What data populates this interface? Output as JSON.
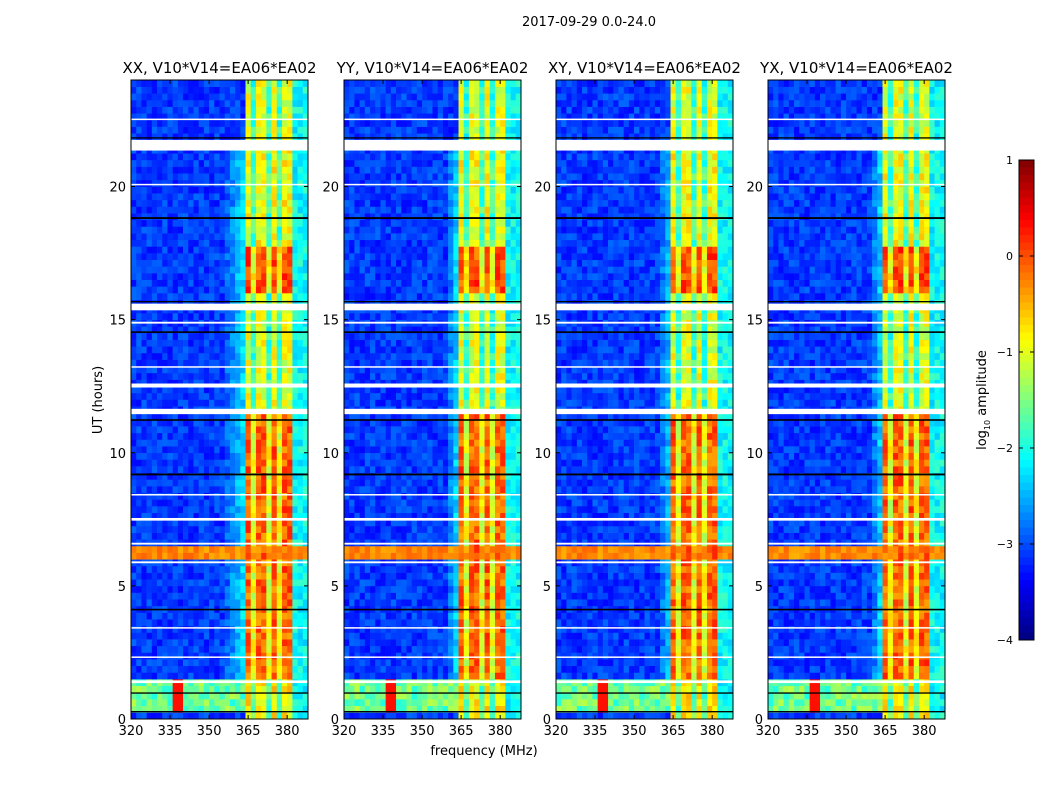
{
  "chart_data": {
    "type": "heatmap",
    "suptitle": "2017-09-29 0.0-24.0",
    "xlabel": "frequency (MHz)",
    "ylabel": "UT (hours)",
    "xlim": [
      320,
      388
    ],
    "ylim": [
      0,
      24
    ],
    "xticks": [
      320,
      335,
      350,
      365,
      380
    ],
    "yticks": [
      0,
      5,
      10,
      15,
      20
    ],
    "panels": [
      {
        "title": "XX, V10*V14=EA06*EA02",
        "band_start": 363,
        "rise_start": 354
      },
      {
        "title": "YY, V10*V14=EA06*EA02",
        "band_start": 363,
        "rise_start": 358
      },
      {
        "title": "XY, V10*V14=EA06*EA02",
        "band_start": 364,
        "rise_start": 358
      },
      {
        "title": "YX, V10*V14=EA06*EA02",
        "band_start": 363,
        "rise_start": 358
      }
    ],
    "colorbar": {
      "label": "log10 amplitude",
      "label_main": "log",
      "label_sub": "10",
      "label_rest": " amplitude",
      "range": [
        -4,
        1
      ],
      "ticks": [
        1,
        0,
        -1,
        -2,
        -3,
        -4
      ],
      "tick_labels": [
        "1",
        "0",
        "−1",
        "−2",
        "−3",
        "−4"
      ],
      "colormap": "jet"
    },
    "model": {
      "background_level": -3.1,
      "rfi_band_mhz": [
        363,
        381
      ],
      "rfi_band_gaps_mhz": [
        367.5,
        372.5,
        376.5
      ],
      "rfi_level_by_time": [
        {
          "from": 0,
          "to": 1.3,
          "level": -0.8
        },
        {
          "from": 1.3,
          "to": 11.5,
          "level": -0.1
        },
        {
          "from": 11.5,
          "to": 16.0,
          "level": -1.0
        },
        {
          "from": 16.0,
          "to": 17.6,
          "level": 0.0
        },
        {
          "from": 17.6,
          "to": 21.4,
          "level": -0.9
        },
        {
          "from": 21.7,
          "to": 24,
          "level": -1.0
        }
      ],
      "low_time_block": {
        "from": 0.1,
        "to": 1.3,
        "level": -1.6,
        "spike_mhz": 338
      },
      "broadband_stripe_hours": [
        6.1,
        6.35
      ],
      "flagged_white_hours": [
        [
          21.35,
          21.75
        ],
        [
          12.45,
          12.6
        ],
        [
          15.35,
          15.6
        ],
        [
          11.45,
          11.65
        ],
        [
          7.45,
          7.55
        ],
        [
          6.55,
          6.62
        ],
        [
          5.85,
          5.92
        ],
        [
          1.35,
          1.45
        ],
        [
          22.5,
          22.55
        ],
        [
          20.05,
          20.1
        ],
        [
          13.2,
          13.25
        ],
        [
          8.4,
          8.45
        ],
        [
          3.4,
          3.45
        ],
        [
          2.3,
          2.35
        ],
        [
          14.85,
          14.92
        ]
      ],
      "flagged_black_hours": [
        [
          18.78,
          18.85
        ],
        [
          14.5,
          14.56
        ],
        [
          11.2,
          11.26
        ],
        [
          9.15,
          9.22
        ],
        [
          4.08,
          4.14
        ],
        [
          0.95,
          1.0
        ],
        [
          0.25,
          0.3
        ],
        [
          21.8,
          21.85
        ],
        [
          15.65,
          15.7
        ]
      ]
    }
  }
}
